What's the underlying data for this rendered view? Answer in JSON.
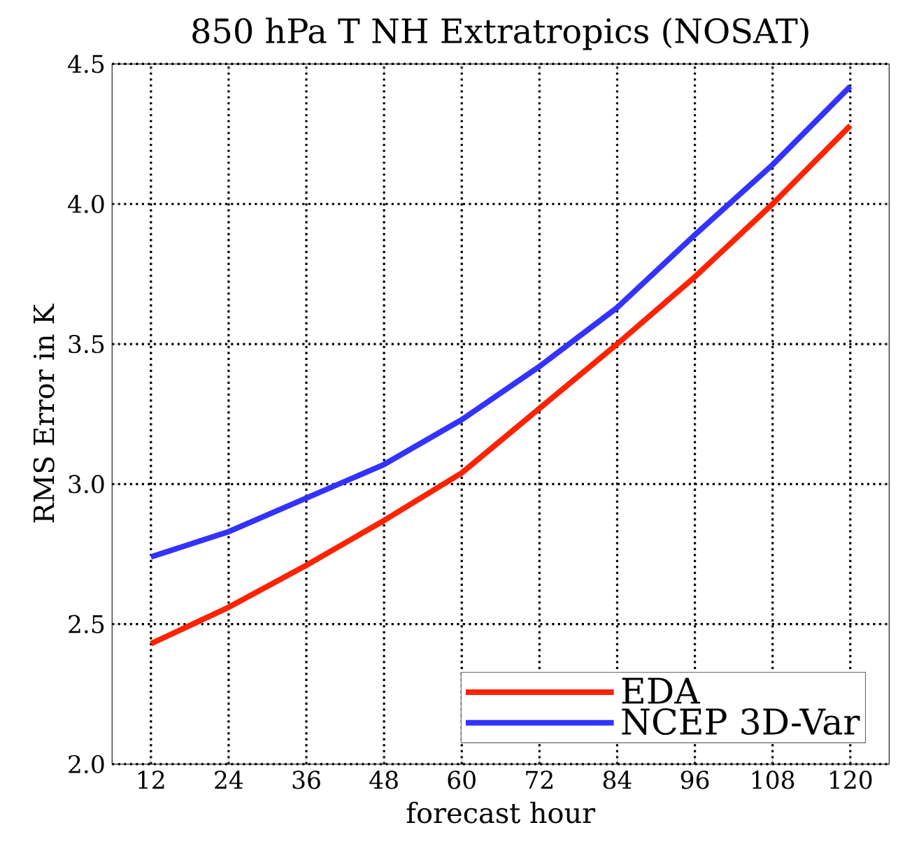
{
  "chart_data": {
    "type": "line",
    "title": "850 hPa T NH Extratropics (NOSAT)",
    "xlabel": "forecast hour",
    "ylabel": "RMS Error in K",
    "x": [
      12,
      24,
      36,
      48,
      60,
      72,
      84,
      96,
      108,
      120
    ],
    "series": [
      {
        "name": "EDA",
        "color": "#ff2200",
        "values": [
          2.43,
          2.56,
          2.71,
          2.87,
          3.04,
          3.27,
          3.5,
          3.74,
          4.0,
          4.28
        ]
      },
      {
        "name": "NCEP 3D-Var",
        "color": "#3333ff",
        "values": [
          2.74,
          2.83,
          2.95,
          3.07,
          3.23,
          3.42,
          3.63,
          3.89,
          4.14,
          4.42
        ]
      }
    ],
    "xlim": [
      6,
      126
    ],
    "ylim": [
      2.0,
      4.5
    ],
    "xticks": [
      12,
      24,
      36,
      48,
      60,
      72,
      84,
      96,
      108,
      120
    ],
    "yticks": [
      {
        "value": 2.0,
        "label": "2.0"
      },
      {
        "value": 2.5,
        "label": "2.5"
      },
      {
        "value": 3.0,
        "label": "3.0"
      },
      {
        "value": 3.5,
        "label": "3.5"
      },
      {
        "value": 4.0,
        "label": "4.0"
      },
      {
        "value": 4.5,
        "label": "4.5"
      }
    ],
    "grid": true,
    "legend": "bottom right",
    "line_style": "solid",
    "marker": "none"
  }
}
